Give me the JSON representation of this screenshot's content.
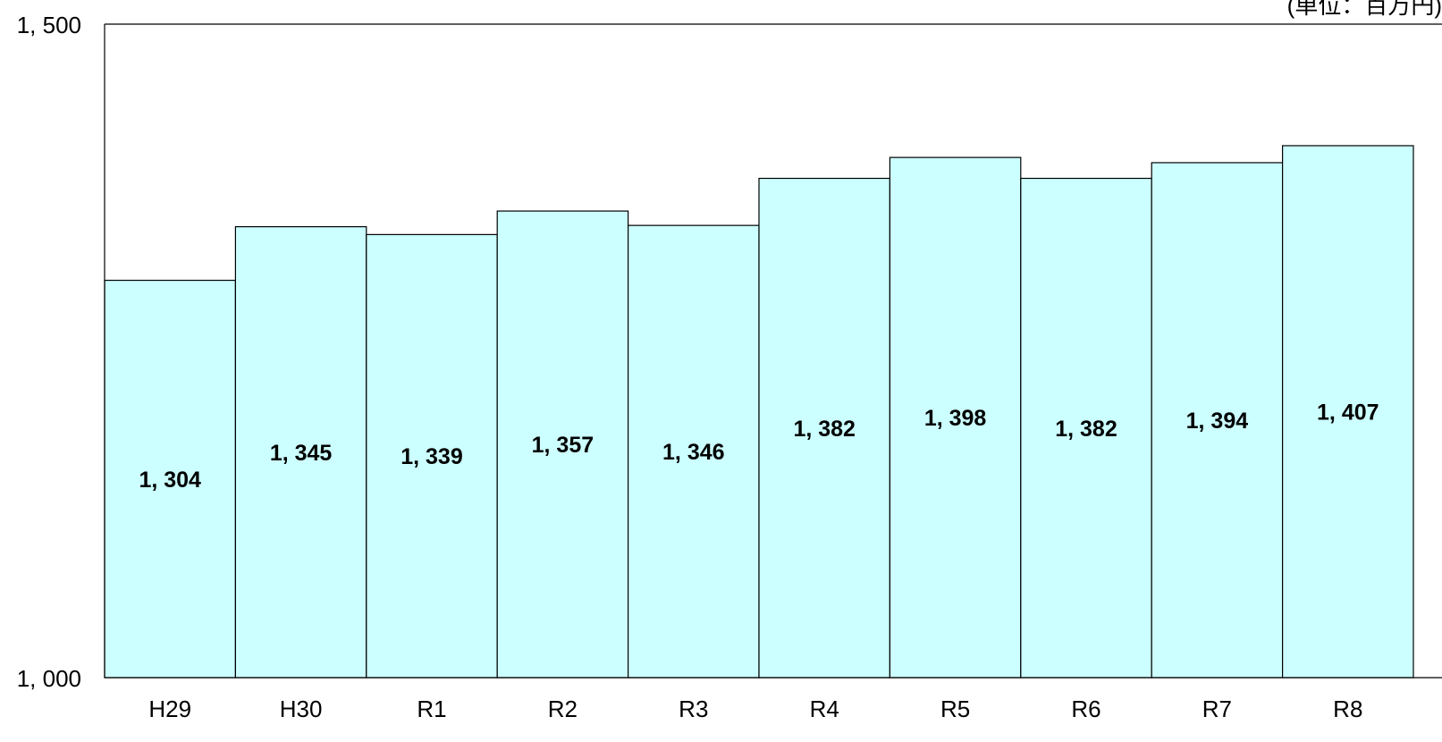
{
  "chart_data": {
    "type": "bar",
    "unit_note": "(単位：百万円)",
    "categories": [
      "H29",
      "H30",
      "R1",
      "R2",
      "R3",
      "R4",
      "R5",
      "R6",
      "R7",
      "R8"
    ],
    "values": [
      1304,
      1345,
      1339,
      1357,
      1346,
      1382,
      1398,
      1382,
      1394,
      1407
    ],
    "value_labels": [
      "1, 304",
      "1, 345",
      "1, 339",
      "1, 357",
      "1, 346",
      "1, 382",
      "1, 398",
      "1, 382",
      "1, 394",
      "1, 407"
    ],
    "ylim": [
      1000,
      1500
    ],
    "y_tick_labels": [
      "1, 000",
      "1, 500"
    ],
    "grid": false,
    "colors": {
      "bar_fill": "#ccffff",
      "bar_stroke": "#000000",
      "axis": "#000000",
      "text": "#000000"
    }
  }
}
